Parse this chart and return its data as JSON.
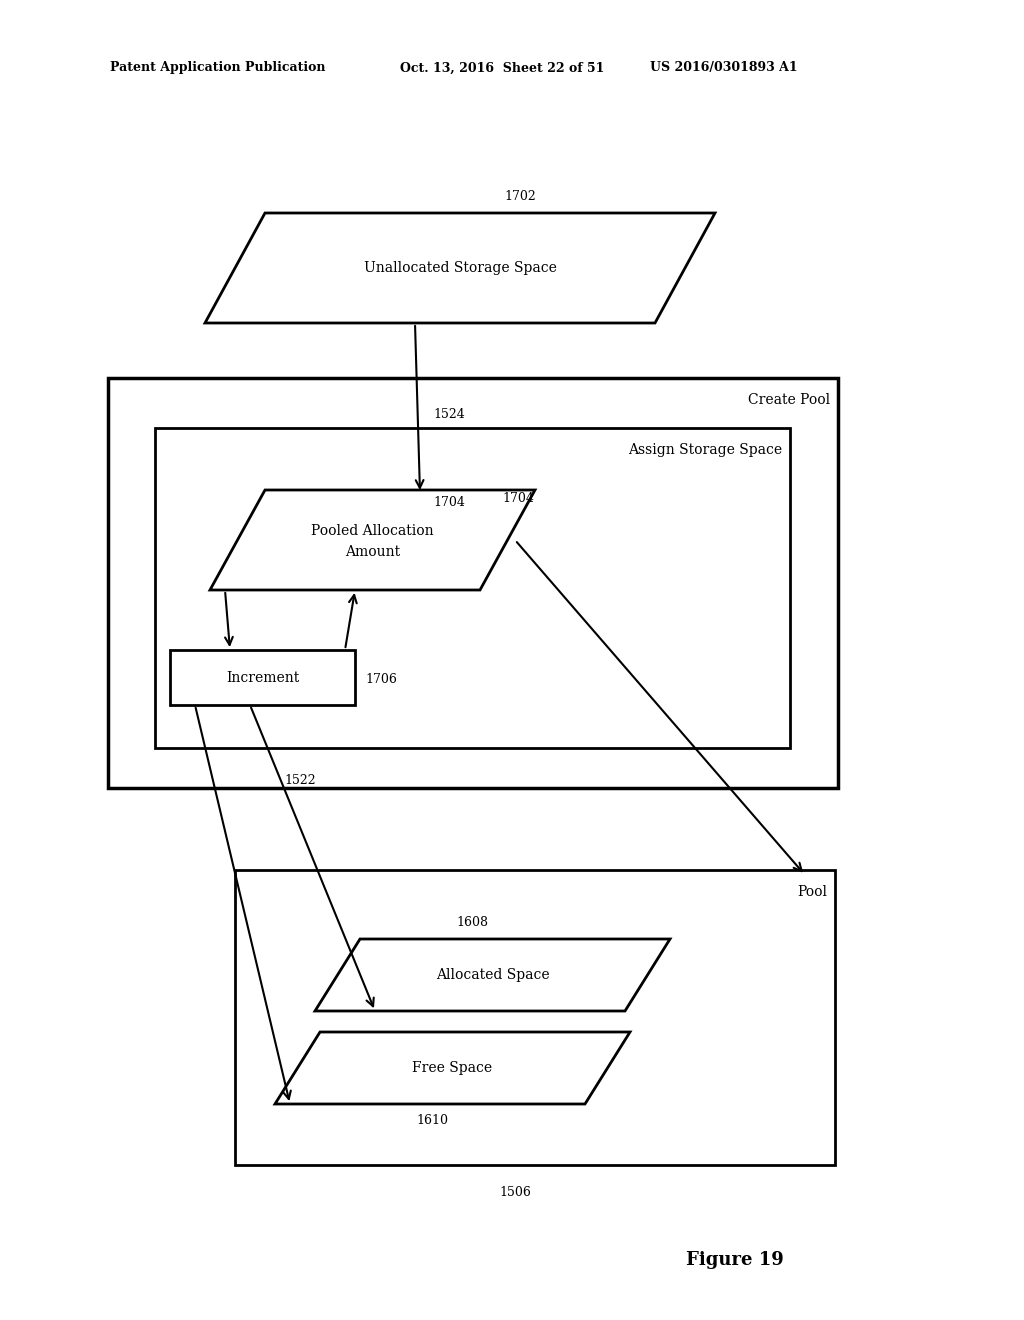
{
  "background_color": "#ffffff",
  "header_left": "Patent Application Publication",
  "header_mid": "Oct. 13, 2016  Sheet 22 of 51",
  "header_right": "US 2016/0301893 A1",
  "figure_label": "Figure 19",
  "label_1702": "1702",
  "label_1524": "1524",
  "label_1704": "1704",
  "label_1706": "1706",
  "label_1522": "1522",
  "label_1608": "1608",
  "label_1610": "1610",
  "label_1506": "1506",
  "text_unallocated": "Unallocated Storage Space",
  "text_create_pool": "Create Pool",
  "text_assign": "Assign Storage Space",
  "text_pooled_line1": "Pooled Allocation",
  "text_pooled_line2": "Amount",
  "text_increment": "Increment",
  "text_pool": "Pool",
  "text_allocated": "Allocated Space",
  "text_free": "Free Space",
  "font_size_header": 9,
  "font_size_label": 9,
  "font_size_body": 10,
  "font_size_figure": 13
}
